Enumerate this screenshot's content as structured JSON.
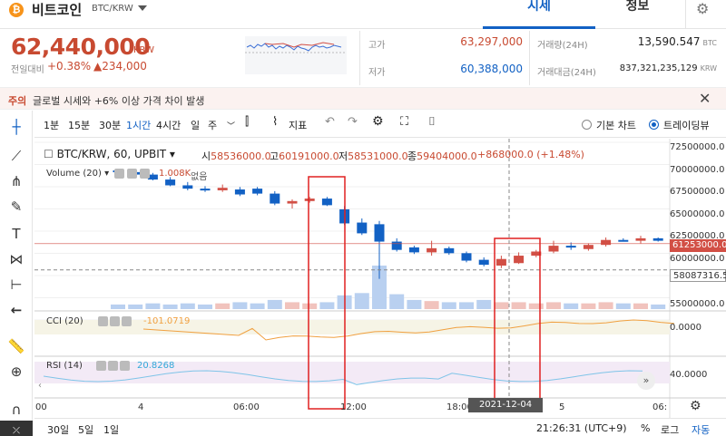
{
  "header": {
    "coin_symbol": "₿",
    "coin_name": "비트코인",
    "pair": "BTC/KRW",
    "tab_quote": "시세",
    "tab_info": "정보",
    "settings_icon": "gear-icon"
  },
  "price": {
    "current": "62,440,000",
    "unit": "KRW",
    "change_label": "전일대비",
    "change_rate": "+0.38%",
    "change_amount": "▲234,000"
  },
  "stats": {
    "high_label": "고가",
    "high_value": "63,297,000",
    "low_label": "저가",
    "low_value": "60,388,000",
    "volume_label": "거래량(24H)",
    "volume_value": "13,590.547",
    "volume_unit": "BTC",
    "amount_label": "거래대금(24H)",
    "amount_value": "837,321,235,129",
    "amount_unit": "KRW"
  },
  "notice": {
    "tag": "주의",
    "text": "글로벌 시세와 +6% 이상 가격 차이 발생",
    "close_icon": "close-icon"
  },
  "toolbar": {
    "intervals": [
      "1분",
      "15분",
      "30분",
      "1시간",
      "4시간",
      "일",
      "주"
    ],
    "active_interval": "1시간",
    "indicator_label": "지표",
    "basic_chart": "기본 차트",
    "trading_view": "트레이딩뷰"
  },
  "legend": {
    "title": "BTC/KRW, 60, UPBIT",
    "open_k": "시",
    "open_v": "58536000.0",
    "high_k": "고",
    "high_v": "60191000.0",
    "low_k": "저",
    "low_v": "58531000.0",
    "close_k": "종",
    "close_v": "59404000.0",
    "change": "+868000.0 (+1.48%)",
    "volume_label": "Volume (20)",
    "volume_value": "1.008K",
    "volume_hidden": "없음",
    "cci_label": "CCI (20)",
    "cci_value": "-101.0719",
    "rsi_label": "RSI (14)",
    "rsi_value": "20.8268"
  },
  "axis": {
    "y_ticks": [
      "72500000.0",
      "70000000.0",
      "67500000.0",
      "65000000.0",
      "62500000.0",
      "60000000.0",
      "57500000.0",
      "55000000.0"
    ],
    "last_price_badge": "61253000.0",
    "crosshair_badge": "58087316.5",
    "cci_tick": "0.0000",
    "rsi_tick": "40.0000",
    "x_ticks": [
      "00",
      "4",
      "06:00",
      "12:00",
      "18:00",
      "5",
      "06:"
    ],
    "crosshair_time": "2021-12-04  21:00"
  },
  "bottom": {
    "ranges": [
      "30일",
      "5일",
      "1일"
    ],
    "clock": "21:26:31 (UTC+9)",
    "percent": "%",
    "log": "로그",
    "auto": "자동"
  },
  "colors": {
    "up": "#d24f45",
    "down": "#1261c4",
    "accent": "#1261c4",
    "highlight_box": "#e02020"
  },
  "chart_data": {
    "type": "candlestick",
    "interval": "60",
    "y_range": [
      54000000,
      73500000
    ],
    "candles": [
      {
        "o": 70100000,
        "h": 70300000,
        "l": 69800000,
        "c": 69900000
      },
      {
        "o": 69900000,
        "h": 70100000,
        "l": 69500000,
        "c": 69600000
      },
      {
        "o": 69600000,
        "h": 69800000,
        "l": 68900000,
        "c": 69000000
      },
      {
        "o": 69000000,
        "h": 69300000,
        "l": 68200000,
        "c": 68300000
      },
      {
        "o": 68300000,
        "h": 68700000,
        "l": 67700000,
        "c": 67900000
      },
      {
        "o": 67900000,
        "h": 68200000,
        "l": 67500000,
        "c": 67700000
      },
      {
        "o": 67700000,
        "h": 68400000,
        "l": 67500000,
        "c": 68000000
      },
      {
        "o": 67800000,
        "h": 68100000,
        "l": 67000000,
        "c": 67200000
      },
      {
        "o": 67900000,
        "h": 68100000,
        "l": 67100000,
        "c": 67300000
      },
      {
        "o": 67300000,
        "h": 67600000,
        "l": 65900000,
        "c": 66100000
      },
      {
        "o": 66100000,
        "h": 66600000,
        "l": 65500000,
        "c": 66400000
      },
      {
        "o": 66400000,
        "h": 66900000,
        "l": 66200000,
        "c": 66700000
      },
      {
        "o": 66700000,
        "h": 66900000,
        "l": 65800000,
        "c": 65900000
      },
      {
        "o": 65400000,
        "h": 65800000,
        "l": 63500000,
        "c": 63700000
      },
      {
        "o": 63800000,
        "h": 64300000,
        "l": 62300000,
        "c": 62500000
      },
      {
        "o": 63600000,
        "h": 64000000,
        "l": 57000000,
        "c": 61500000
      },
      {
        "o": 61500000,
        "h": 61900000,
        "l": 60300000,
        "c": 60500000
      },
      {
        "o": 60800000,
        "h": 61000000,
        "l": 60000000,
        "c": 60200000
      },
      {
        "o": 60200000,
        "h": 61600000,
        "l": 59800000,
        "c": 60700000
      },
      {
        "o": 60700000,
        "h": 60900000,
        "l": 59900000,
        "c": 60100000
      },
      {
        "o": 60100000,
        "h": 60300000,
        "l": 59000000,
        "c": 59200000
      },
      {
        "o": 59300000,
        "h": 59600000,
        "l": 58500000,
        "c": 58700000
      },
      {
        "o": 58600000,
        "h": 59800000,
        "l": 58300000,
        "c": 59400000
      },
      {
        "o": 58900000,
        "h": 60200000,
        "l": 58800000,
        "c": 59800000
      },
      {
        "o": 59800000,
        "h": 60500000,
        "l": 59600000,
        "c": 60300000
      },
      {
        "o": 60300000,
        "h": 61600000,
        "l": 60100000,
        "c": 61000000
      },
      {
        "o": 61000000,
        "h": 61400000,
        "l": 60500000,
        "c": 60800000
      },
      {
        "o": 60600000,
        "h": 61300000,
        "l": 60400000,
        "c": 61100000
      },
      {
        "o": 61100000,
        "h": 62000000,
        "l": 60900000,
        "c": 61700000
      },
      {
        "o": 61700000,
        "h": 61900000,
        "l": 61500000,
        "c": 61600000
      },
      {
        "o": 61600000,
        "h": 62200000,
        "l": 61300000,
        "c": 61900000
      },
      {
        "o": 61900000,
        "h": 62000000,
        "l": 61500000,
        "c": 61600000
      }
    ],
    "volume": [
      0.4,
      0.4,
      0.5,
      0.4,
      0.5,
      0.4,
      0.5,
      0.6,
      0.5,
      0.8,
      0.6,
      0.5,
      0.6,
      1.2,
      1.4,
      3.8,
      1.3,
      0.8,
      0.7,
      0.6,
      0.6,
      0.8,
      0.6,
      0.6,
      0.5,
      0.6,
      0.5,
      0.5,
      0.6,
      0.5,
      0.5,
      0.4
    ]
  }
}
